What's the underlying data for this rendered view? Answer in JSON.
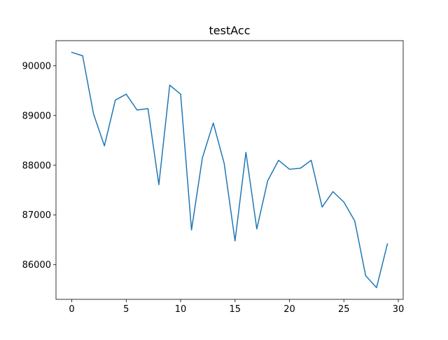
{
  "chart_data": {
    "type": "line",
    "title": "testAcc",
    "xlabel": "",
    "ylabel": "",
    "x": [
      0,
      1,
      2,
      3,
      4,
      5,
      6,
      7,
      8,
      9,
      10,
      11,
      12,
      13,
      14,
      15,
      16,
      17,
      18,
      19,
      20,
      21,
      22,
      23,
      24,
      25,
      26,
      27,
      28,
      29
    ],
    "series": [
      {
        "color": "#1f77b4",
        "values": [
          90270,
          90200,
          89030,
          88390,
          89310,
          89430,
          89110,
          89140,
          87610,
          89610,
          89430,
          86700,
          88150,
          88850,
          88040,
          86480,
          88260,
          86720,
          87690,
          88100,
          87920,
          87940,
          88100,
          87160,
          87470,
          87260,
          86880,
          85780,
          85540,
          86420
        ]
      }
    ],
    "xlim": [
      -1.45,
      30.45
    ],
    "ylim": [
      85305,
      90505
    ],
    "xticks": [
      0,
      5,
      10,
      15,
      20,
      25,
      30
    ],
    "yticks": [
      86000,
      87000,
      88000,
      89000,
      90000
    ],
    "xtick_labels": [
      "0",
      "5",
      "10",
      "15",
      "20",
      "25",
      "30"
    ],
    "ytick_labels": [
      "86000",
      "87000",
      "88000",
      "89000",
      "90000"
    ],
    "grid": false,
    "legend": "none"
  }
}
